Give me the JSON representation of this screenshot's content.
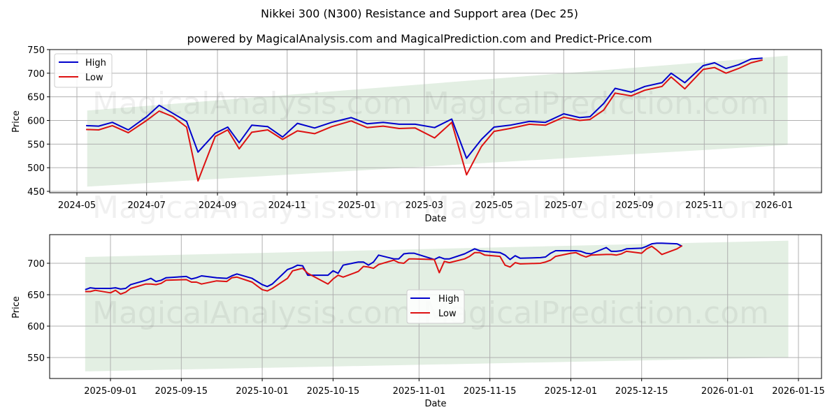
{
  "title": "Nikkei 300 (N300) Resistance and Support area (Dec 25)",
  "subtitle": "powered by MagicalAnalysis.com and MagicalPrediction.com and Predict-Price.com",
  "watermarks": [
    "MagicalAnalysis.com",
    "MagicalPrediction.com"
  ],
  "colors": {
    "high": "#0000cc",
    "low": "#dd1111",
    "band": "#e3efe3",
    "grid": "#b0b0b0"
  },
  "chart_data": [
    {
      "type": "line",
      "title": "Nikkei 300 (N300) Resistance and Support area (Dec 25)",
      "xlabel": "Date",
      "ylabel": "Price",
      "ylim": [
        445,
        750
      ],
      "yticks": [
        450,
        500,
        550,
        600,
        650,
        700,
        750
      ],
      "xticks": [
        "2024-05",
        "2024-07",
        "2024-09",
        "2024-11",
        "2025-01",
        "2025-03",
        "2025-05",
        "2025-07",
        "2025-09",
        "2025-11",
        "2026-01"
      ],
      "legend": {
        "position": "upper left",
        "entries": [
          "High",
          "Low"
        ]
      },
      "grid": true,
      "band": {
        "start": "2024-05-10",
        "end": "2026-01-13",
        "upper_start": 621,
        "upper_end": 737,
        "lower_start": 460,
        "lower_end": 548
      },
      "x": [
        "2024-05-09",
        "2024-05-20",
        "2024-06-01",
        "2024-06-15",
        "2024-07-01",
        "2024-07-12",
        "2024-07-24",
        "2024-08-05",
        "2024-08-15",
        "2024-08-30",
        "2024-09-10",
        "2024-09-20",
        "2024-10-01",
        "2024-10-15",
        "2024-10-28",
        "2024-11-10",
        "2024-11-25",
        "2024-12-10",
        "2024-12-27",
        "2025-01-10",
        "2025-01-24",
        "2025-02-07",
        "2025-02-21",
        "2025-03-10",
        "2025-03-25",
        "2025-04-07",
        "2025-04-20",
        "2025-05-01",
        "2025-05-15",
        "2025-06-01",
        "2025-06-15",
        "2025-07-01",
        "2025-07-15",
        "2025-07-24",
        "2025-08-05",
        "2025-08-15",
        "2025-08-29",
        "2025-09-10",
        "2025-09-25",
        "2025-10-03",
        "2025-10-15",
        "2025-10-31",
        "2025-11-10",
        "2025-11-20",
        "2025-12-01",
        "2025-12-12",
        "2025-12-22"
      ],
      "series": [
        {
          "name": "High",
          "values": [
            589,
            588,
            596,
            580,
            608,
            632,
            615,
            598,
            533,
            573,
            586,
            553,
            590,
            587,
            565,
            594,
            584,
            596,
            606,
            593,
            596,
            592,
            592,
            585,
            603,
            520,
            560,
            586,
            590,
            598,
            596,
            614,
            606,
            608,
            636,
            668,
            660,
            672,
            680,
            700,
            680,
            716,
            722,
            710,
            718,
            730,
            732
          ]
        },
        {
          "name": "Low",
          "values": [
            581,
            580,
            589,
            574,
            600,
            620,
            608,
            586,
            472,
            566,
            580,
            540,
            575,
            580,
            560,
            578,
            572,
            587,
            599,
            585,
            588,
            583,
            584,
            563,
            596,
            485,
            545,
            577,
            583,
            592,
            590,
            607,
            600,
            602,
            622,
            658,
            652,
            664,
            672,
            692,
            667,
            708,
            712,
            700,
            710,
            722,
            728
          ]
        }
      ]
    },
    {
      "type": "line",
      "title": "",
      "xlabel": "Date",
      "ylabel": "Price",
      "ylim": [
        518,
        745
      ],
      "yticks": [
        550,
        600,
        650,
        700
      ],
      "xticks": [
        "2025-09-01",
        "2025-09-15",
        "2025-10-01",
        "2025-10-15",
        "2025-11-01",
        "2025-11-15",
        "2025-12-01",
        "2025-12-15",
        "2026-01-01",
        "2026-01-15"
      ],
      "legend": {
        "position": "center",
        "entries": [
          "High",
          "Low"
        ]
      },
      "grid": true,
      "band": {
        "start": "2025-08-27",
        "end": "2026-01-13",
        "upper_start": 710,
        "upper_end": 736,
        "lower_start": 528,
        "lower_end": 550
      },
      "x": [
        "2025-08-27",
        "2025-08-28",
        "2025-08-29",
        "2025-09-01",
        "2025-09-02",
        "2025-09-03",
        "2025-09-04",
        "2025-09-05",
        "2025-09-08",
        "2025-09-09",
        "2025-09-10",
        "2025-09-11",
        "2025-09-12",
        "2025-09-16",
        "2025-09-17",
        "2025-09-18",
        "2025-09-19",
        "2025-09-22",
        "2025-09-24",
        "2025-09-25",
        "2025-09-26",
        "2025-09-29",
        "2025-09-30",
        "2025-10-01",
        "2025-10-02",
        "2025-10-03",
        "2025-10-06",
        "2025-10-07",
        "2025-10-08",
        "2025-10-09",
        "2025-10-10",
        "2025-10-14",
        "2025-10-15",
        "2025-10-16",
        "2025-10-17",
        "2025-10-20",
        "2025-10-21",
        "2025-10-22",
        "2025-10-23",
        "2025-10-24",
        "2025-10-27",
        "2025-10-28",
        "2025-10-29",
        "2025-10-30",
        "2025-10-31",
        "2025-11-04",
        "2025-11-05",
        "2025-11-06",
        "2025-11-07",
        "2025-11-10",
        "2025-11-11",
        "2025-11-12",
        "2025-11-13",
        "2025-11-14",
        "2025-11-17",
        "2025-11-18",
        "2025-11-19",
        "2025-11-20",
        "2025-11-21",
        "2025-11-25",
        "2025-11-26",
        "2025-11-27",
        "2025-11-28",
        "2025-12-01",
        "2025-12-02",
        "2025-12-03",
        "2025-12-04",
        "2025-12-05",
        "2025-12-08",
        "2025-12-09",
        "2025-12-10",
        "2025-12-11",
        "2025-12-12",
        "2025-12-15",
        "2025-12-16",
        "2025-12-17",
        "2025-12-18",
        "2025-12-19",
        "2025-12-22",
        "2025-12-23"
      ],
      "series": [
        {
          "name": "High",
          "values": [
            658,
            661,
            660,
            660,
            661,
            659,
            660,
            666,
            673,
            676,
            671,
            673,
            677,
            679,
            675,
            677,
            680,
            677,
            676,
            680,
            683,
            676,
            671,
            666,
            663,
            667,
            690,
            693,
            697,
            696,
            681,
            681,
            688,
            684,
            697,
            702,
            702,
            697,
            702,
            713,
            707,
            707,
            715,
            716,
            716,
            706,
            710,
            707,
            707,
            715,
            719,
            723,
            720,
            719,
            717,
            713,
            706,
            712,
            708,
            709,
            710,
            716,
            720,
            720,
            720,
            719,
            716,
            715,
            725,
            719,
            719,
            720,
            723,
            724,
            727,
            731,
            732,
            732,
            731,
            727
          ]
        },
        {
          "name": "Low",
          "values": [
            655,
            655,
            657,
            653,
            657,
            651,
            654,
            660,
            667,
            667,
            666,
            668,
            673,
            674,
            670,
            670,
            667,
            672,
            671,
            677,
            678,
            670,
            664,
            658,
            656,
            660,
            676,
            688,
            690,
            692,
            684,
            667,
            675,
            681,
            678,
            687,
            695,
            694,
            692,
            698,
            705,
            701,
            700,
            707,
            707,
            706,
            685,
            703,
            701,
            707,
            711,
            717,
            717,
            713,
            711,
            697,
            694,
            701,
            699,
            700,
            702,
            705,
            711,
            716,
            717,
            713,
            710,
            713,
            714,
            714,
            713,
            715,
            719,
            716,
            723,
            727,
            721,
            714,
            723,
            728
          ]
        }
      ]
    }
  ]
}
